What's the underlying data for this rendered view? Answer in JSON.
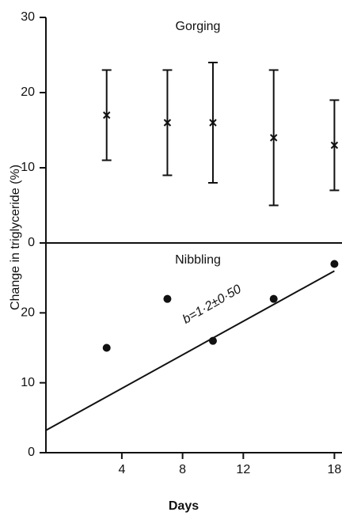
{
  "chart_data": [
    {
      "type": "errorbar",
      "title": "Gorging",
      "ylabel": "Change in triglyceride (%)",
      "x": [
        3,
        7,
        10,
        14,
        18
      ],
      "values": [
        17,
        16,
        16,
        14,
        13
      ],
      "upper": [
        23,
        23,
        24,
        23,
        19
      ],
      "lower": [
        11,
        9,
        8,
        5,
        7
      ],
      "xlim": [
        -1,
        18.5
      ],
      "ylim": [
        0,
        30
      ],
      "yticks": [
        0,
        10,
        20,
        30
      ]
    },
    {
      "type": "scatter",
      "title": "Nibbling",
      "xlabel": "Days",
      "x": [
        3,
        7,
        10,
        14,
        18
      ],
      "values": [
        15,
        22,
        16,
        22,
        27
      ],
      "fit_x": [
        -1,
        18
      ],
      "fit_y": [
        3.2,
        26
      ],
      "annotation": "b=1·2±0·50",
      "xlim": [
        -1,
        18.5
      ],
      "ylim": [
        0,
        30
      ],
      "yticks": [
        0,
        10,
        20
      ],
      "xticks": [
        4,
        8,
        12,
        18
      ]
    }
  ]
}
